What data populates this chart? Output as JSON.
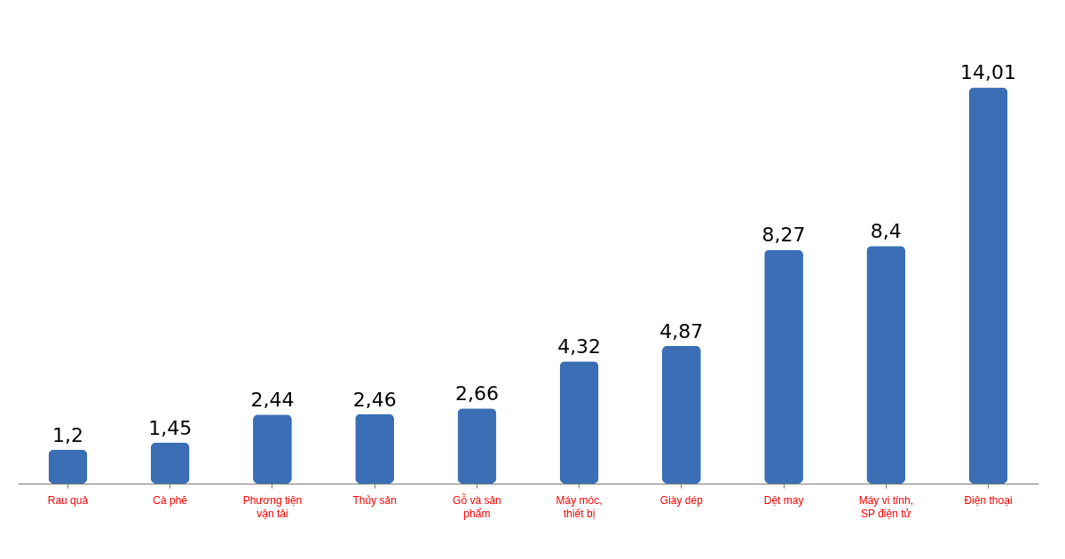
{
  "chart_data": {
    "type": "bar",
    "categories": [
      "Rau quả",
      "Cà phê",
      "Phương tiện vận tải",
      "Thủy sản",
      "Gỗ và sản phẩm",
      "Máy móc, thiết bị",
      "Giày dép",
      "Dệt may",
      "Máy vi tính, SP điện tử",
      "Điện thoại"
    ],
    "values": [
      1.2,
      1.45,
      2.44,
      2.46,
      2.66,
      4.32,
      4.87,
      8.27,
      8.4,
      14.01
    ],
    "value_labels": [
      "1,2",
      "1,45",
      "2,44",
      "2,46",
      "2,66",
      "4,32",
      "4,87",
      "8,27",
      "8,4",
      "14,01"
    ],
    "color": "#3a6fb6"
  }
}
